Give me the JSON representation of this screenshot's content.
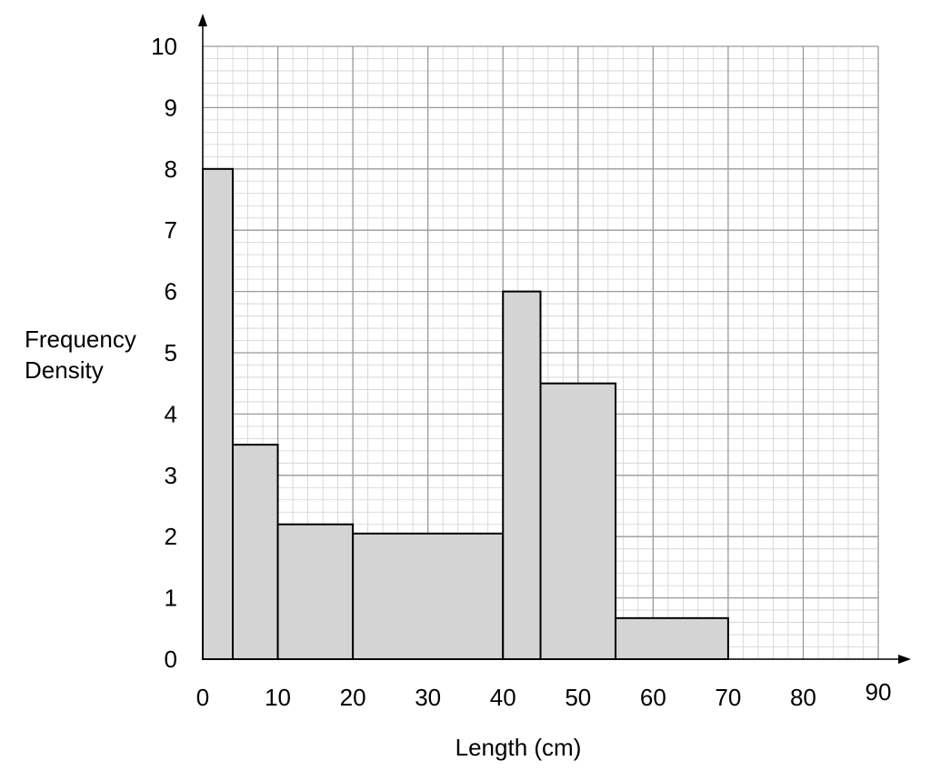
{
  "chart_data": {
    "type": "bar",
    "subtype": "histogram",
    "xlabel": "Length (cm)",
    "ylabel_lines": [
      "Frequency",
      "Density"
    ],
    "xlim": [
      0,
      90
    ],
    "ylim": [
      0,
      10
    ],
    "x_ticks": [
      0,
      10,
      20,
      30,
      40,
      50,
      60,
      70,
      80,
      90
    ],
    "y_ticks": [
      0,
      1,
      2,
      3,
      4,
      5,
      6,
      7,
      8,
      9,
      10
    ],
    "grid": true,
    "minor_grid_step": 2,
    "bins": [
      {
        "from": 0,
        "to": 4,
        "value": 8
      },
      {
        "from": 4,
        "to": 10,
        "value": 3.5
      },
      {
        "from": 10,
        "to": 20,
        "value": 2.2
      },
      {
        "from": 20,
        "to": 40,
        "value": 2.05
      },
      {
        "from": 40,
        "to": 45,
        "value": 6
      },
      {
        "from": 45,
        "to": 55,
        "value": 4.5
      },
      {
        "from": 55,
        "to": 70,
        "value": 0.67
      }
    ],
    "colors": {
      "bar_fill": "#d4d4d4",
      "bar_stroke": "#000000",
      "major_grid": "#9a9a9a",
      "minor_grid": "#d2d2d2",
      "axis": "#000000"
    }
  }
}
